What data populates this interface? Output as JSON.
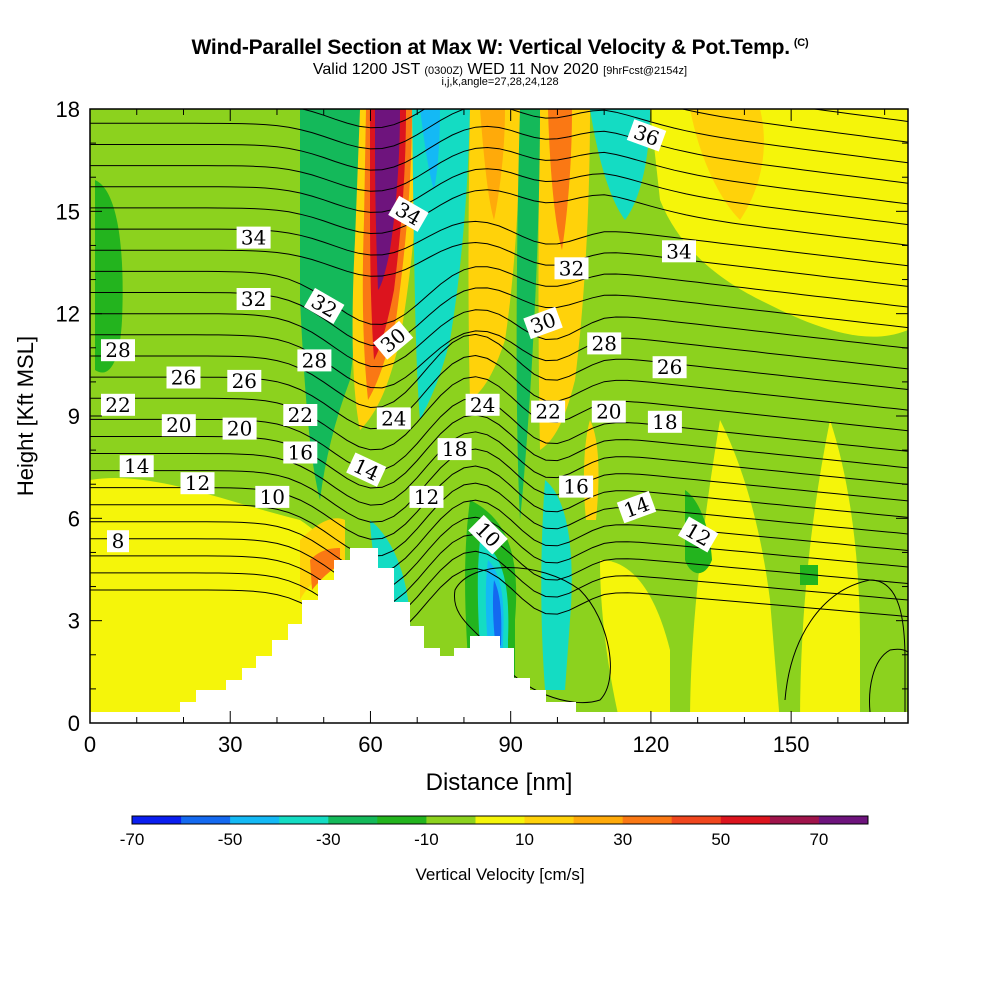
{
  "title": {
    "main": "Wind-Parallel Section at Max W: Vertical Velocity & Pot.Temp.",
    "copyright": "(C)",
    "valid_a": "Valid 1200 JST",
    "valid_small1": "(0300Z)",
    "valid_b": "WED 11 Nov 2020",
    "valid_small2": "[9hrFcst@2154z]",
    "indices": "i,j,k,angle=27,28,24,128"
  },
  "chart_data": {
    "type": "heatmap",
    "xlabel": "Distance [nm]",
    "ylabel": "Height [Kft MSL]",
    "xlim": [
      0,
      175
    ],
    "ylim": [
      0,
      18
    ],
    "x_ticks": [
      "0",
      "30",
      "60",
      "90",
      "120",
      "150"
    ],
    "y_ticks": [
      "0",
      "3",
      "6",
      "9",
      "12",
      "15",
      "18"
    ],
    "colorbar": {
      "label": "Vertical Velocity [cm/s]",
      "tick_labels": [
        "-70",
        "-50",
        "-30",
        "-10",
        "10",
        "30",
        "50",
        "70"
      ],
      "colors": [
        "#0a1ef0",
        "#1469f0",
        "#14b9f5",
        "#14dcc3",
        "#14b95a",
        "#23b41e",
        "#8cd21e",
        "#f5f50a",
        "#ffd20a",
        "#ffaa0a",
        "#fa7814",
        "#f0461e",
        "#dc141e",
        "#a0144b",
        "#6e147d"
      ]
    },
    "theta_contour_labels": [
      {
        "text": "36",
        "x": 119,
        "y": 17.2,
        "rot": 20
      },
      {
        "text": "34",
        "x": 35,
        "y": 14.2,
        "rot": 0
      },
      {
        "text": "34",
        "x": 68,
        "y": 14.9,
        "rot": 30
      },
      {
        "text": "34",
        "x": 126,
        "y": 13.8,
        "rot": 0
      },
      {
        "text": "32",
        "x": 35,
        "y": 12.4,
        "rot": 0
      },
      {
        "text": "32",
        "x": 50,
        "y": 12.2,
        "rot": 30
      },
      {
        "text": "32",
        "x": 103,
        "y": 13.3,
        "rot": 0
      },
      {
        "text": "30",
        "x": 65,
        "y": 11.2,
        "rot": -40
      },
      {
        "text": "30",
        "x": 97,
        "y": 11.7,
        "rot": -20
      },
      {
        "text": "28",
        "x": 6,
        "y": 10.9,
        "rot": 0
      },
      {
        "text": "28",
        "x": 48,
        "y": 10.6,
        "rot": 0
      },
      {
        "text": "28",
        "x": 110,
        "y": 11.1,
        "rot": 0
      },
      {
        "text": "26",
        "x": 20,
        "y": 10.1,
        "rot": 0
      },
      {
        "text": "26",
        "x": 33,
        "y": 10.0,
        "rot": 0
      },
      {
        "text": "26",
        "x": 124,
        "y": 10.4,
        "rot": 0
      },
      {
        "text": "24",
        "x": 65,
        "y": 8.9,
        "rot": 0
      },
      {
        "text": "24",
        "x": 84,
        "y": 9.3,
        "rot": 0
      },
      {
        "text": "22",
        "x": 6,
        "y": 9.3,
        "rot": 0
      },
      {
        "text": "22",
        "x": 45,
        "y": 9.0,
        "rot": 0
      },
      {
        "text": "22",
        "x": 98,
        "y": 9.1,
        "rot": 0
      },
      {
        "text": "20",
        "x": 19,
        "y": 8.7,
        "rot": 0
      },
      {
        "text": "20",
        "x": 32,
        "y": 8.6,
        "rot": 0
      },
      {
        "text": "20",
        "x": 111,
        "y": 9.1,
        "rot": 0
      },
      {
        "text": "18",
        "x": 78,
        "y": 8.0,
        "rot": 0
      },
      {
        "text": "18",
        "x": 123,
        "y": 8.8,
        "rot": 0
      },
      {
        "text": "16",
        "x": 45,
        "y": 7.9,
        "rot": 0
      },
      {
        "text": "16",
        "x": 104,
        "y": 6.9,
        "rot": 0
      },
      {
        "text": "14",
        "x": 10,
        "y": 7.5,
        "rot": 0
      },
      {
        "text": "14",
        "x": 59,
        "y": 7.4,
        "rot": 25
      },
      {
        "text": "14",
        "x": 117,
        "y": 6.3,
        "rot": -20
      },
      {
        "text": "12",
        "x": 23,
        "y": 7.0,
        "rot": 0
      },
      {
        "text": "12",
        "x": 72,
        "y": 6.6,
        "rot": 0
      },
      {
        "text": "12",
        "x": 130,
        "y": 5.5,
        "rot": 30
      },
      {
        "text": "10",
        "x": 39,
        "y": 6.6,
        "rot": 0
      },
      {
        "text": "10",
        "x": 85,
        "y": 5.5,
        "rot": 45
      },
      {
        "text": "8",
        "x": 6,
        "y": 5.3,
        "rot": 0
      }
    ]
  }
}
